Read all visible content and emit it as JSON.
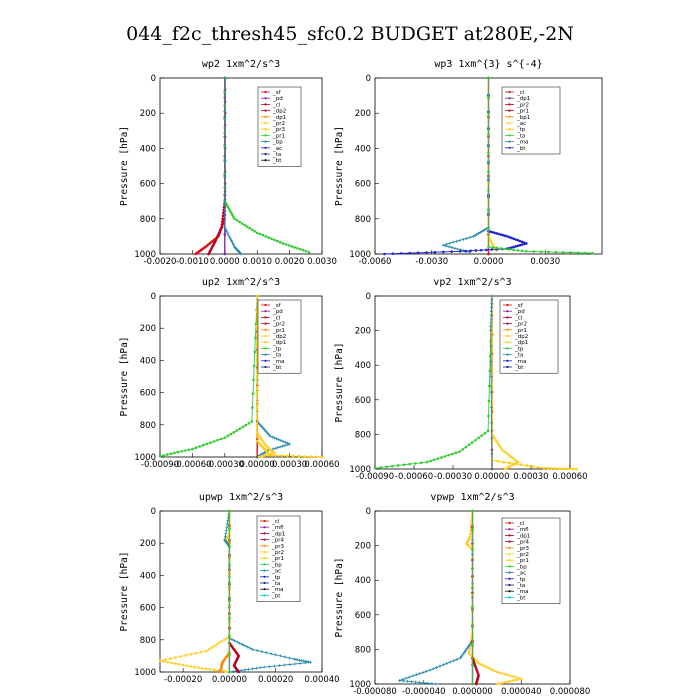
{
  "title": "044_f2c_thresh45_sfc0.2  BUDGET at280E,-2N",
  "colors": {
    "red": "#dd1111",
    "purple": "#8822aa",
    "crimson": "#bb0022",
    "darkred": "#aa1133",
    "orange": "#ff8800",
    "yellow": "#ffd030",
    "gold": "#ffcc00",
    "green": "#33cc33",
    "teal": "#2288aa",
    "blue": "#2222cc",
    "cyan": "#00ccdd",
    "navy": "#112288",
    "black": "#111111"
  },
  "chart_data": [
    {
      "type": "line",
      "title": "wp2  1xm^2/s^3",
      "ylabel": "Pressure [hPa]",
      "xlim": [
        -0.002,
        0.003
      ],
      "ylim": [
        1000,
        0
      ],
      "xticks": [
        "-0.0020",
        "-0.0010",
        "0.0000",
        "0.0010",
        "0.0020",
        "0.0030"
      ],
      "yticks": [
        "0",
        "200",
        "400",
        "600",
        "800",
        "1000"
      ],
      "legend": [
        "_sf",
        "_pd",
        "_cl",
        "_dp2",
        "_dp1",
        "_pr2",
        "_pr3",
        "_pr1",
        "_bp",
        "_ac",
        "_ta",
        "_bt"
      ],
      "series": [
        {
          "name": "_cl",
          "color": "red",
          "marker": "dot",
          "points": [
            [
              1e-05,
              0
            ],
            [
              1e-05,
              600
            ],
            [
              0.0,
              800
            ],
            [
              -0.0002,
              900
            ],
            [
              -0.0006,
              960
            ],
            [
              -0.0009,
              1000
            ]
          ]
        },
        {
          "name": "_dp1",
          "color": "crimson",
          "marker": "dot",
          "points": [
            [
              0.0,
              0
            ],
            [
              0.0,
              700
            ],
            [
              -0.0001,
              850
            ],
            [
              -0.0003,
              930
            ],
            [
              -0.0005,
              1000
            ]
          ]
        },
        {
          "name": "_pr1",
          "color": "purple",
          "marker": "dot",
          "points": [
            [
              0.0,
              0
            ],
            [
              0.0,
              1000
            ]
          ]
        },
        {
          "name": "_bp",
          "color": "green",
          "marker": "dot",
          "points": [
            [
              0.0,
              0
            ],
            [
              0.0,
              700
            ],
            [
              0.0003,
              800
            ],
            [
              0.001,
              880
            ],
            [
              0.0018,
              940
            ],
            [
              0.0026,
              990
            ]
          ]
        },
        {
          "name": "_ac",
          "color": "teal",
          "marker": "cross",
          "points": [
            [
              0.0,
              0
            ],
            [
              0.0,
              850
            ],
            [
              0.0003,
              960
            ],
            [
              0.0005,
              1000
            ]
          ]
        }
      ]
    },
    {
      "type": "line",
      "title": "wp3  1xm^{3} s^{-4}",
      "ylabel": "Pressure [hPa]",
      "xlim": [
        -0.006,
        0.006
      ],
      "ylim": [
        1000,
        0
      ],
      "xticks": [
        "-0.0060",
        "-0.0030",
        "0.0000",
        "0.0030"
      ],
      "yticks": [
        "0",
        "200",
        "400",
        "600",
        "800",
        "1000"
      ],
      "legend": [
        "_cl",
        "_dp1",
        "_pr2",
        "_pr1",
        "_bp1",
        "_ac",
        "_tp",
        "_ta",
        "_ma",
        "_bt"
      ],
      "series": [
        {
          "name": "_cl",
          "color": "red",
          "marker": "dot",
          "points": [
            [
              0.0,
              0
            ],
            [
              0.0,
              1000
            ]
          ]
        },
        {
          "name": "_pr1",
          "color": "yellow",
          "marker": "dot",
          "points": [
            [
              0.0,
              0
            ],
            [
              0.0,
              900
            ],
            [
              0.0004,
              980
            ]
          ]
        },
        {
          "name": "_tp",
          "color": "teal",
          "marker": "cross",
          "points": [
            [
              0.0,
              0
            ],
            [
              0.0,
              850
            ],
            [
              -0.0008,
              900
            ],
            [
              -0.0024,
              950
            ],
            [
              -0.001,
              990
            ]
          ]
        },
        {
          "name": "_ta",
          "color": "blue",
          "marker": "dot",
          "points": [
            [
              0.0,
              0
            ],
            [
              0.0,
              870
            ],
            [
              0.001,
              900
            ],
            [
              0.002,
              940
            ],
            [
              0.001,
              970
            ],
            [
              -0.0015,
              985
            ],
            [
              -0.0055,
              1000
            ]
          ]
        },
        {
          "name": "_bp1",
          "color": "green",
          "marker": "dot",
          "points": [
            [
              0.0,
              0
            ],
            [
              0.0,
              960
            ],
            [
              0.002,
              985
            ],
            [
              0.0055,
              995
            ]
          ]
        }
      ]
    },
    {
      "type": "line",
      "title": "up2  1xm^2/s^3",
      "ylabel": "Pressure [hPa]",
      "xlim": [
        -0.0009,
        0.0006
      ],
      "ylim": [
        1000,
        0
      ],
      "xticks": [
        "-0.00090",
        "-0.00060",
        "-0.00030",
        "0.00000",
        "0.00030",
        "0.00060"
      ],
      "yticks": [
        "0",
        "200",
        "400",
        "600",
        "800",
        "1000"
      ],
      "legend": [
        "_sf",
        "_pd",
        "_cl",
        "_pr2",
        "_pr1",
        "_dp2",
        "_dp1",
        "_tp",
        "_ta",
        "_ma",
        "_bt"
      ],
      "series": [
        {
          "name": "_cl",
          "color": "red",
          "marker": "dot",
          "points": [
            [
              0.0,
              0
            ],
            [
              0.0,
              1000
            ]
          ]
        },
        {
          "name": "_tp",
          "color": "teal",
          "marker": "cross",
          "points": [
            [
              0.0,
              0
            ],
            [
              1e-05,
              200
            ],
            [
              0.0,
              780
            ],
            [
              0.00012,
              870
            ],
            [
              0.0003,
              920
            ],
            [
              0.0001,
              960
            ],
            [
              0.0,
              1000
            ]
          ]
        },
        {
          "name": "_dp2",
          "color": "green",
          "marker": "dot",
          "points": [
            [
              0.0,
              0
            ],
            [
              -5e-05,
              780
            ],
            [
              -0.0003,
              880
            ],
            [
              -0.0006,
              950
            ],
            [
              -0.0009,
              995
            ]
          ]
        },
        {
          "name": "_pr1",
          "color": "yellow",
          "marker": "dot",
          "points": [
            [
              0.0,
              0
            ],
            [
              0.0,
              850
            ],
            [
              8e-05,
              930
            ],
            [
              0.00016,
              975
            ],
            [
              2e-05,
              1000
            ]
          ]
        },
        {
          "name": "_dp1",
          "color": "gold",
          "marker": "dot",
          "points": [
            [
              0.0,
              0
            ],
            [
              0.0,
              900
            ],
            [
              0.00012,
              990
            ],
            [
              0.0006,
              1000
            ]
          ]
        }
      ]
    },
    {
      "type": "line",
      "title": "vp2  1xm^2/s^3",
      "ylabel": "Pressure [hPa]",
      "xlim": [
        -0.0009,
        0.0006
      ],
      "ylim": [
        1000,
        0
      ],
      "xticks": [
        "-0.00090",
        "-0.00060",
        "-0.00030",
        "0.00000",
        "0.00030",
        "0.00060"
      ],
      "yticks": [
        "0",
        "200",
        "400",
        "600",
        "800",
        "1000"
      ],
      "legend": [
        "_sf",
        "_pd",
        "_cl",
        "_pr2",
        "_pr1",
        "_dp2",
        "_dp1",
        "_tp",
        "_ta",
        "_ma",
        "_bt"
      ],
      "series": [
        {
          "name": "_cl",
          "color": "red",
          "marker": "dot",
          "points": [
            [
              0.0,
              0
            ],
            [
              0.0,
              1000
            ]
          ]
        },
        {
          "name": "_dp2",
          "color": "green",
          "marker": "dot",
          "points": [
            [
              0.0,
              0
            ],
            [
              -3e-05,
              780
            ],
            [
              -0.00025,
              900
            ],
            [
              -0.0005,
              960
            ],
            [
              -0.0009,
              995
            ]
          ]
        },
        {
          "name": "_pr1",
          "color": "yellow",
          "marker": "dot",
          "points": [
            [
              0.0,
              0
            ],
            [
              0.0,
              800
            ],
            [
              8e-05,
              890
            ],
            [
              0.0002,
              960
            ],
            [
              0.0001,
              1000
            ]
          ]
        },
        {
          "name": "_dp1",
          "color": "gold",
          "marker": "dot",
          "points": [
            [
              0.0,
              0
            ],
            [
              0.0,
              950
            ],
            [
              0.0004,
              995
            ],
            [
              0.00065,
              1000
            ]
          ]
        },
        {
          "name": "_tp",
          "color": "teal",
          "marker": "cross",
          "points": [
            [
              0.0,
              0
            ],
            [
              -1e-05,
              200
            ],
            [
              0.0,
              1000
            ]
          ]
        }
      ]
    },
    {
      "type": "line",
      "title": "upwp  1xm^2/s^3",
      "ylabel": "Pressure [hPa]",
      "xlim": [
        -0.0003,
        0.0004
      ],
      "ylim": [
        1000,
        0
      ],
      "xticks": [
        "-0.00020",
        "0.00000",
        "0.00020",
        "0.00040"
      ],
      "yticks": [
        "0",
        "200",
        "400",
        "600",
        "800",
        "1000"
      ],
      "legend": [
        "_cl",
        "_mfl",
        "_dp1",
        "_pr4",
        "_pr3",
        "_pr2",
        "_pr1",
        "_bp",
        "_ac",
        "_tp",
        "_ta",
        "_ma",
        "_bt"
      ],
      "series": [
        {
          "name": "_cl",
          "color": "purple",
          "marker": "dot",
          "points": [
            [
              0.0,
              0
            ],
            [
              0.0,
              1000
            ]
          ]
        },
        {
          "name": "_pr1",
          "color": "yellow",
          "marker": "dot",
          "points": [
            [
              0.0,
              0
            ],
            [
              0.0,
              150
            ],
            [
              -2e-05,
              180
            ],
            [
              0.0,
              210
            ],
            [
              0.0,
              780
            ],
            [
              -0.0001,
              870
            ],
            [
              -0.0003,
              930
            ],
            [
              -0.00015,
              970
            ],
            [
              0.0,
              1000
            ]
          ]
        },
        {
          "name": "_ac",
          "color": "teal",
          "marker": "cross",
          "points": [
            [
              0.0,
              0
            ],
            [
              -2e-05,
              180
            ],
            [
              0.0,
              220
            ],
            [
              0.0,
              790
            ],
            [
              0.0001,
              860
            ],
            [
              0.00028,
              920
            ],
            [
              0.00035,
              940
            ],
            [
              0.00015,
              970
            ],
            [
              0.0,
              1000
            ]
          ]
        },
        {
          "name": "_dp1",
          "color": "crimson",
          "marker": "dot",
          "points": [
            [
              0.0,
              0
            ],
            [
              0.0,
              820
            ],
            [
              4e-05,
              900
            ],
            [
              2e-05,
              960
            ],
            [
              4e-05,
              1000
            ]
          ]
        },
        {
          "name": "_pr2",
          "color": "orange",
          "marker": "dot",
          "points": [
            [
              0.0,
              0
            ],
            [
              0.0,
              880
            ],
            [
              -3e-05,
              940
            ],
            [
              -4e-05,
              1000
            ]
          ]
        },
        {
          "name": "_bp",
          "color": "green",
          "marker": "dot",
          "points": [
            [
              0.0,
              0
            ],
            [
              0.0,
              1000
            ]
          ]
        }
      ]
    },
    {
      "type": "line",
      "title": "vpwp  1xm^2/s^3",
      "ylabel": "Pressure [hPa]",
      "xlim": [
        -8e-05,
        8e-05
      ],
      "ylim": [
        1000,
        0
      ],
      "xticks": [
        "-0.000080",
        "-0.000040",
        "0.000000",
        "0.000040",
        "0.000080"
      ],
      "yticks": [
        "0",
        "200",
        "400",
        "600",
        "800",
        "1000"
      ],
      "legend": [
        "_cl",
        "_mfl",
        "_dp1",
        "_pr4",
        "_pr3",
        "_pr2",
        "_pr1",
        "_bp",
        "_ac",
        "_tp",
        "_ta",
        "_ma",
        "_bt"
      ],
      "series": [
        {
          "name": "_cl",
          "color": "purple",
          "marker": "dot",
          "points": [
            [
              0.0,
              0
            ],
            [
              0.0,
              1000
            ]
          ]
        },
        {
          "name": "_pr1",
          "color": "yellow",
          "marker": "dot",
          "points": [
            [
              0.0,
              0
            ],
            [
              -2e-06,
              150
            ],
            [
              -5e-06,
              190
            ],
            [
              0.0,
              220
            ],
            [
              0.0,
              700
            ],
            [
              -3e-06,
              820
            ],
            [
              5e-06,
              880
            ],
            [
              2e-05,
              930
            ],
            [
              4e-05,
              970
            ],
            [
              2e-05,
              1000
            ]
          ]
        },
        {
          "name": "_ac",
          "color": "teal",
          "marker": "cross",
          "points": [
            [
              0.0,
              0
            ],
            [
              0.0,
              750
            ],
            [
              -1e-05,
              850
            ],
            [
              -3.5e-05,
              920
            ],
            [
              -6e-05,
              980
            ],
            [
              -3e-05,
              1000
            ]
          ]
        },
        {
          "name": "_dp1",
          "color": "crimson",
          "marker": "dot",
          "points": [
            [
              0.0,
              0
            ],
            [
              0.0,
              850
            ],
            [
              5e-06,
              950
            ],
            [
              3e-06,
              1000
            ]
          ]
        },
        {
          "name": "_bp",
          "color": "green",
          "marker": "dot",
          "points": [
            [
              0.0,
              0
            ],
            [
              0.0,
              1000
            ]
          ]
        }
      ]
    }
  ]
}
